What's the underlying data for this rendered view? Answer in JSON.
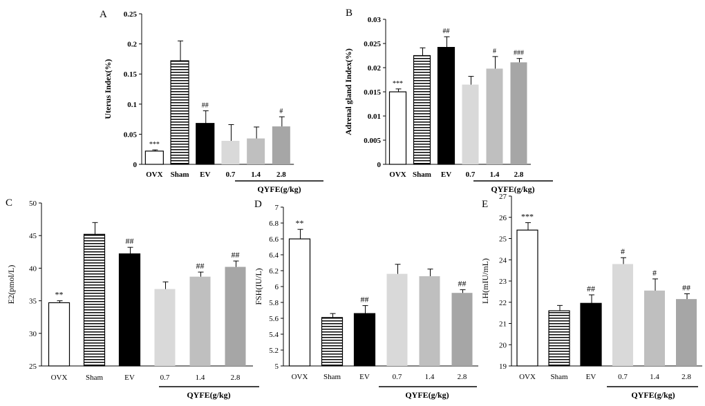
{
  "figure": {
    "background": "#ffffff"
  },
  "chart_data": [
    {
      "id": "A",
      "letter": "A",
      "type": "bar",
      "ylabel": "Uterus Index(%)",
      "bold": true,
      "ylim": [
        0,
        0.25
      ],
      "yticks": [
        "0",
        "0.05",
        "0.1",
        "0.15",
        "0.2",
        "0.25"
      ],
      "categories": [
        "OVX",
        "Sham",
        "EV",
        "0.7",
        "1.4",
        "2.8"
      ],
      "values": [
        0.022,
        0.172,
        0.068,
        0.039,
        0.043,
        0.063
      ],
      "errors": [
        0.002,
        0.033,
        0.021,
        0.027,
        0.019,
        0.016
      ],
      "annotations": [
        "***",
        "",
        "##",
        "",
        "",
        "#"
      ],
      "group_label": "QYFE(g/kg)"
    },
    {
      "id": "B",
      "letter": "B",
      "type": "bar",
      "ylabel": "Adrenal gland Index(%)",
      "bold": true,
      "ylim": [
        0,
        0.03
      ],
      "yticks": [
        "0",
        "0.005",
        "0.01",
        "0.015",
        "0.02",
        "0.025",
        "0.03"
      ],
      "categories": [
        "OVX",
        "Sham",
        "EV",
        "0.7",
        "1.4",
        "2.8"
      ],
      "values": [
        0.015,
        0.0225,
        0.0242,
        0.0165,
        0.0198,
        0.0211
      ],
      "errors": [
        0.0006,
        0.0016,
        0.0022,
        0.0017,
        0.0025,
        0.0008
      ],
      "annotations": [
        "***",
        "",
        "##",
        "",
        "#",
        "###"
      ],
      "group_label": "QYFE(g/kg)"
    },
    {
      "id": "C",
      "letter": "C",
      "type": "bar",
      "ylabel": "E2(pmol/L)",
      "bold": false,
      "ylim": [
        25,
        50
      ],
      "yticks": [
        "25",
        "30",
        "35",
        "40",
        "45",
        "50"
      ],
      "categories": [
        "OVX",
        "Sham",
        "EV",
        "0.7",
        "1.4",
        "2.8"
      ],
      "values": [
        34.7,
        45.2,
        42.2,
        36.8,
        38.7,
        40.2
      ],
      "errors": [
        0.3,
        1.8,
        1.0,
        1.1,
        0.7,
        0.9
      ],
      "annotations": [
        "**",
        "",
        "##",
        "",
        "##",
        "##"
      ],
      "group_label": "QYFE(g/kg)"
    },
    {
      "id": "D",
      "letter": "D",
      "type": "bar",
      "ylabel": "FSH(IU/L)",
      "bold": false,
      "ylim": [
        5,
        7
      ],
      "yticks": [
        "5",
        "5.2",
        "5.4",
        "5.6",
        "5.8",
        "6",
        "6.2",
        "6.4",
        "6.6",
        "6.8",
        "7"
      ],
      "categories": [
        "OVX",
        "Sham",
        "EV",
        "0.7",
        "1.4",
        "2.8"
      ],
      "values": [
        6.6,
        5.61,
        5.66,
        6.16,
        6.13,
        5.92
      ],
      "errors": [
        0.12,
        0.05,
        0.1,
        0.12,
        0.09,
        0.04
      ],
      "annotations": [
        "**",
        "",
        "##",
        "",
        "",
        "##"
      ],
      "group_label": "QYFE(g/kg)"
    },
    {
      "id": "E",
      "letter": "E",
      "type": "bar",
      "ylabel": "LH(mIU/mL)",
      "bold": false,
      "ylim": [
        19,
        27
      ],
      "yticks": [
        "19",
        "20",
        "21",
        "22",
        "23",
        "24",
        "25",
        "26",
        "27"
      ],
      "categories": [
        "OVX",
        "Sham",
        "EV",
        "0.7",
        "1.4",
        "2.8"
      ],
      "values": [
        25.4,
        21.6,
        21.95,
        23.8,
        22.55,
        22.15
      ],
      "errors": [
        0.35,
        0.25,
        0.4,
        0.3,
        0.55,
        0.25
      ],
      "annotations": [
        "***",
        "",
        "##",
        "#",
        "#",
        "##"
      ],
      "group_label": "QYFE(g/kg)"
    }
  ]
}
